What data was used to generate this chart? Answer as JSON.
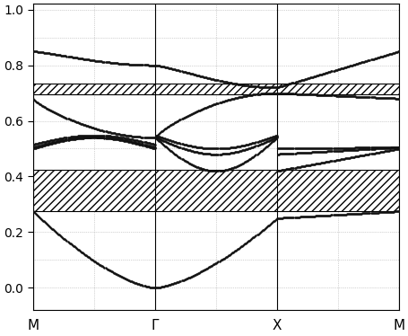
{
  "x_labels": [
    "M",
    "Γ",
    "X",
    "M"
  ],
  "x_ticks": [
    0,
    1,
    2,
    3
  ],
  "ylim": [
    -0.08,
    1.02
  ],
  "yticks": [
    0.0,
    0.2,
    0.4,
    0.6,
    0.8,
    1.0
  ],
  "hatch_regions": [
    {
      "ymin": 0.275,
      "ymax": 0.425,
      "hatch": "////"
    },
    {
      "ymin": 0.695,
      "ymax": 0.735,
      "hatch": "////"
    }
  ],
  "hlines": [
    0.275,
    0.425,
    0.695,
    0.735
  ],
  "vlines": [
    0,
    1,
    2,
    3
  ],
  "dot_color": "#111111",
  "dot_size": 1.8,
  "background_color": "white",
  "grid_color": "#aaaaaa",
  "grid_style": ":"
}
